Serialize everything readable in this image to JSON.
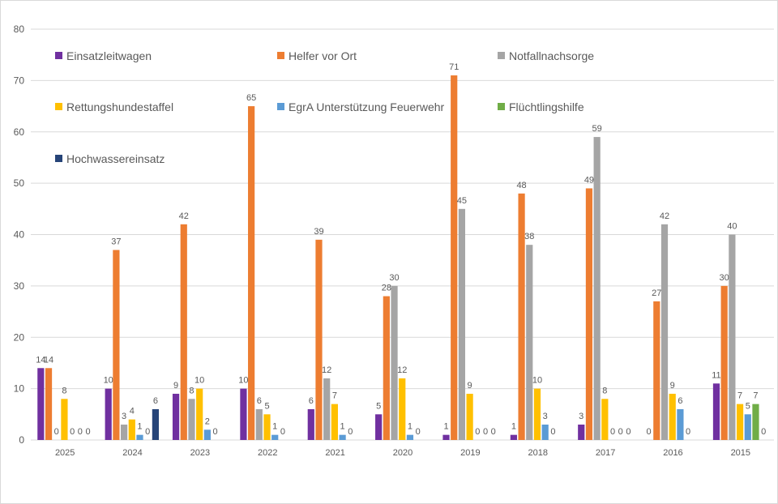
{
  "chart_data": {
    "type": "bar",
    "title": "",
    "xlabel": "",
    "ylabel": "",
    "ylim": [
      0,
      80
    ],
    "yticks": [
      0,
      10,
      20,
      30,
      40,
      50,
      60,
      70,
      80
    ],
    "grid": true,
    "legend_placement": "top",
    "categories": [
      "2025",
      "2024",
      "2023",
      "2022",
      "2021",
      "2020",
      "2019",
      "2018",
      "2017",
      "2016",
      "2015"
    ],
    "series": [
      {
        "name": "Einsatzleitwagen",
        "color": "#7030a0",
        "values": [
          14,
          10,
          9,
          10,
          6,
          5,
          1,
          1,
          3,
          0,
          11
        ]
      },
      {
        "name": "Helfer vor Ort",
        "color": "#ed7d31",
        "values": [
          14,
          37,
          42,
          65,
          39,
          28,
          71,
          48,
          49,
          27,
          30
        ]
      },
      {
        "name": "Notfallnachsorge",
        "color": "#a5a5a5",
        "values": [
          0,
          3,
          8,
          6,
          12,
          30,
          45,
          38,
          59,
          42,
          40
        ]
      },
      {
        "name": "Rettungshundestaffel",
        "color": "#ffc000",
        "values": [
          8,
          4,
          10,
          5,
          7,
          12,
          9,
          10,
          8,
          9,
          7
        ]
      },
      {
        "name": "EgrA Unterstützung Feuerwehr",
        "color": "#5b9bd5",
        "values": [
          0,
          1,
          2,
          1,
          1,
          1,
          0,
          3,
          0,
          6,
          5
        ]
      },
      {
        "name": "Flüchtlingshilfe",
        "color": "#70ad47",
        "values": [
          0,
          0,
          0,
          0,
          0,
          0,
          0,
          0,
          0,
          0,
          7
        ]
      },
      {
        "name": "Hochwassereinsatz",
        "color": "#264478",
        "values": [
          0,
          6,
          null,
          null,
          null,
          null,
          0,
          null,
          0,
          null,
          0
        ]
      }
    ]
  }
}
